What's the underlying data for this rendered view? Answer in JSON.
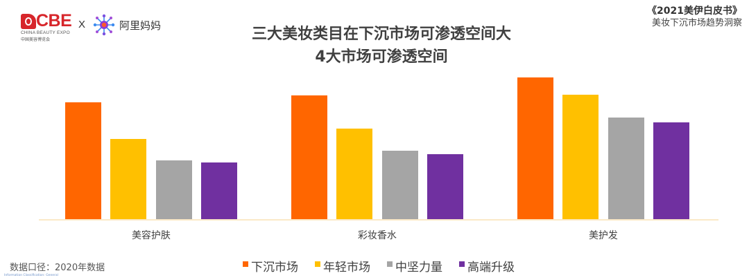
{
  "header": {
    "logo_cbe": {
      "text": "CBE",
      "subtitle": "CHINA BEAUTY EXPO",
      "subtitle_cn": "中国美容博览会",
      "color": "#d7262b"
    },
    "separator": "X",
    "logo_alimama": {
      "text": "阿里妈妈"
    },
    "brand": {
      "title": "《2021美伊白皮书》",
      "subtitle": "美妆下沉市场趋势洞察"
    }
  },
  "chart_data": {
    "type": "bar",
    "title": "三大美妆类目在下沉市场可渗透空间大\n4大市场可渗透空间",
    "title_lines": [
      "三大美妆类目在下沉市场可渗透空间大",
      "4大市场可渗透空间"
    ],
    "categories": [
      "美容护肤",
      "彩妆香水",
      "美护发"
    ],
    "series": [
      {
        "name": "下沉市场",
        "color": "#ff6600",
        "values": [
          156,
          165,
          189
        ]
      },
      {
        "name": "年轻市场",
        "color": "#ffc000",
        "values": [
          107,
          121,
          166
        ]
      },
      {
        "name": "中坚力量",
        "color": "#a5a5a5",
        "values": [
          79,
          92,
          136
        ]
      },
      {
        "name": "高端升级",
        "color": "#7030a0",
        "values": [
          76,
          87,
          129
        ]
      }
    ],
    "xlabel": "",
    "ylabel": "",
    "y_axis_visible": false,
    "values_note": "relative bar heights (no y-axis shown)",
    "ylim": [
      0,
      200
    ],
    "grid": false,
    "legend_position": "bottom"
  },
  "footer": {
    "data_note": "数据口径：2020年数据",
    "classification": "Information Classification: General"
  }
}
